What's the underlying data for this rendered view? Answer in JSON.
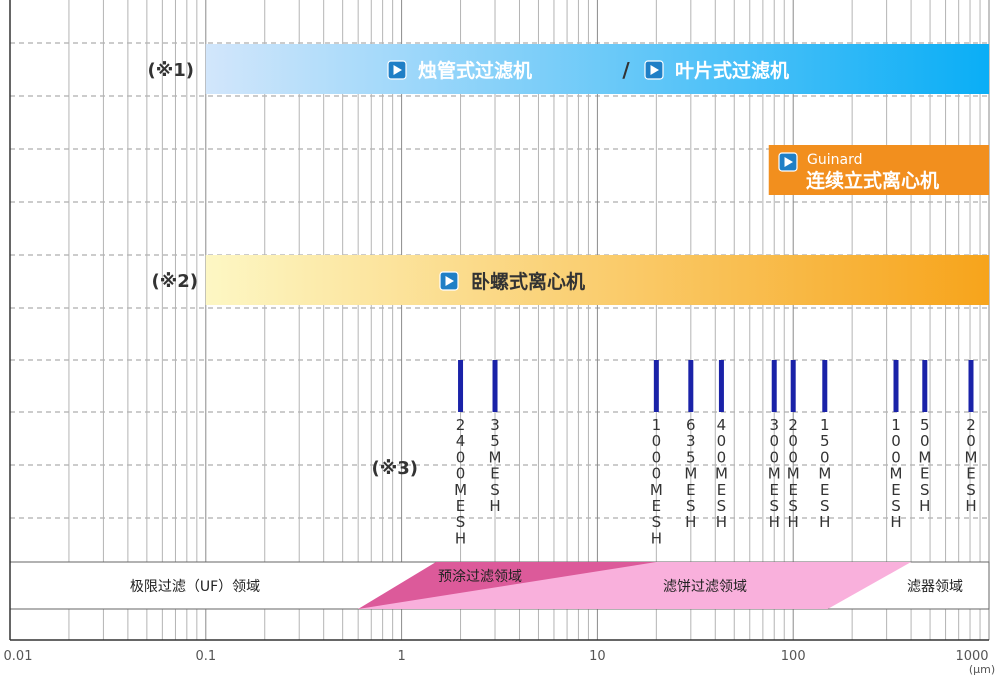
{
  "chart_data": {
    "type": "range-bar",
    "x_scale": "log",
    "xlim": [
      0.01,
      1000
    ],
    "x_unit": "(μm)",
    "x_tick_labels": [
      "0.01",
      "0.1",
      "1",
      "10",
      "100",
      "1000"
    ],
    "x_tick_values": [
      0.01,
      0.1,
      1,
      10,
      100,
      1000
    ],
    "grid": "vertical log minor lines, horizontal dashed",
    "ranges": [
      {
        "note": "(※1)",
        "labels": [
          "烛管式过滤机",
          "叶片式过滤机"
        ],
        "separator": "/",
        "x_start": 0.1,
        "x_end": 1000,
        "color_start": "#d2e6fb",
        "color_end": "#0aaef6",
        "text_color": "#ffffff"
      },
      {
        "note": "",
        "label_small": "Guinard",
        "labels": [
          "连续立式离心机"
        ],
        "x_start": 75,
        "x_end": 1000,
        "color_start": "#f28f1e",
        "color_end": "#f28f1e",
        "text_color": "#ffffff"
      },
      {
        "note": "(※2)",
        "labels": [
          "卧螺式离心机"
        ],
        "x_start": 0.1,
        "x_end": 1000,
        "color_start": "#fdf7c4",
        "color_end": "#f7a41b",
        "text_color": "#333333"
      }
    ],
    "mesh_note": "(※3)",
    "mesh_color": "#1a22a8",
    "mesh": [
      {
        "x": 2,
        "label": "2400MESH"
      },
      {
        "x": 3,
        "label": "35MESH"
      },
      {
        "x": 20,
        "label": "1000MESH"
      },
      {
        "x": 30,
        "label": "635MESH"
      },
      {
        "x": 43,
        "label": "400MESH"
      },
      {
        "x": 80,
        "label": "300MESH"
      },
      {
        "x": 100,
        "label": "200MESH"
      },
      {
        "x": 145,
        "label": "150MESH"
      },
      {
        "x": 335,
        "label": "100MESH"
      },
      {
        "x": 470,
        "label": "50MESH"
      },
      {
        "x": 1000,
        "label": "20MESH"
      }
    ],
    "regions": [
      {
        "label": "极限过滤（UF）领域",
        "color": ""
      },
      {
        "label": "预涂过滤领域",
        "color": "#dc5a9a"
      },
      {
        "label": "滤饼过滤领域",
        "color": "#f9b0dc"
      },
      {
        "label": "滤器领域",
        "color": ""
      }
    ],
    "precoat_range": [
      0.6,
      20
    ],
    "cake_range_top": [
      1.5,
      400
    ],
    "cake_range_bottom": [
      0.6,
      150
    ]
  }
}
